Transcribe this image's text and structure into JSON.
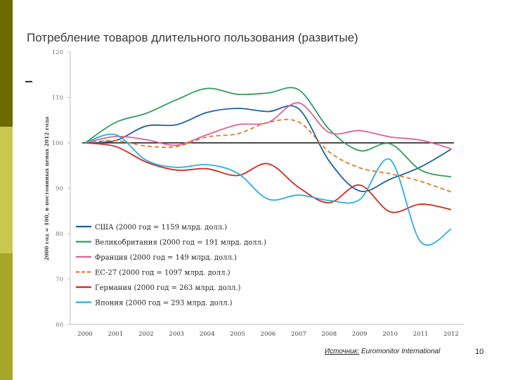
{
  "slide": {
    "title": "Потребление товаров длительного пользования (развитые)",
    "source_prefix": "Источник:",
    "source_name": "Euromonitor International",
    "page_number": "10"
  },
  "colors": {
    "sidebar_dark": "#6b6b00",
    "sidebar_light": "#c8c850",
    "sidebar_mid": "#a6a628"
  },
  "chart_data": {
    "type": "line",
    "ylabel": "2000 год = 100, в постоянных ценах 2012 года",
    "ylim": [
      60,
      120
    ],
    "yticks": [
      60,
      70,
      80,
      90,
      100,
      110,
      120
    ],
    "categories": [
      "2000",
      "2001",
      "2002",
      "2003",
      "2004",
      "2005",
      "2006",
      "2007",
      "2008",
      "2009",
      "2010",
      "2011",
      "2012"
    ],
    "reference_line": 100,
    "legend_position": "bottom-left",
    "series": [
      {
        "name": "США (2000 год = 1159 млрд. долл.)",
        "color": "#1f5fa0",
        "dash": false,
        "values": [
          100,
          100.5,
          103.7,
          104.0,
          106.7,
          107.6,
          106.9,
          107.5,
          96.0,
          89.4,
          92.0,
          94.7,
          98.6
        ]
      },
      {
        "name": "Великобритания (2000 год = 191 млрд. долл.)",
        "color": "#2e9e5b",
        "dash": false,
        "values": [
          100,
          104.5,
          106.5,
          109.5,
          112.0,
          110.7,
          111.0,
          111.7,
          103.0,
          98.3,
          99.8,
          94.0,
          92.5
        ]
      },
      {
        "name": "Франция (2000 год = 149 млрд. долл.)",
        "color": "#e0609a",
        "dash": false,
        "values": [
          100,
          101.4,
          100.7,
          99.5,
          101.8,
          104.0,
          104.5,
          108.8,
          102.3,
          102.7,
          101.3,
          100.6,
          98.7
        ]
      },
      {
        "name": "ЕС-27 (2000 год = 1097 млрд. долл.)",
        "color": "#e07a28",
        "dash": true,
        "values": [
          100,
          100.5,
          99.3,
          99.2,
          101.3,
          102.0,
          104.5,
          104.6,
          98.0,
          94.5,
          93.2,
          91.5,
          89.2
        ]
      },
      {
        "name": "Германия (2000 год = 263 млрд. долл.)",
        "color": "#d02a1e",
        "dash": false,
        "values": [
          100,
          99.2,
          95.8,
          94.0,
          94.3,
          92.8,
          95.4,
          90.2,
          86.8,
          90.7,
          84.8,
          86.5,
          85.3
        ]
      },
      {
        "name": "Япония (2000 год = 293 млрд. долл.)",
        "color": "#2aaedc",
        "dash": false,
        "values": [
          100,
          101.8,
          96.2,
          94.6,
          95.2,
          93.3,
          87.6,
          88.5,
          87.3,
          87.5,
          96.3,
          78.2,
          81.0
        ]
      }
    ]
  }
}
